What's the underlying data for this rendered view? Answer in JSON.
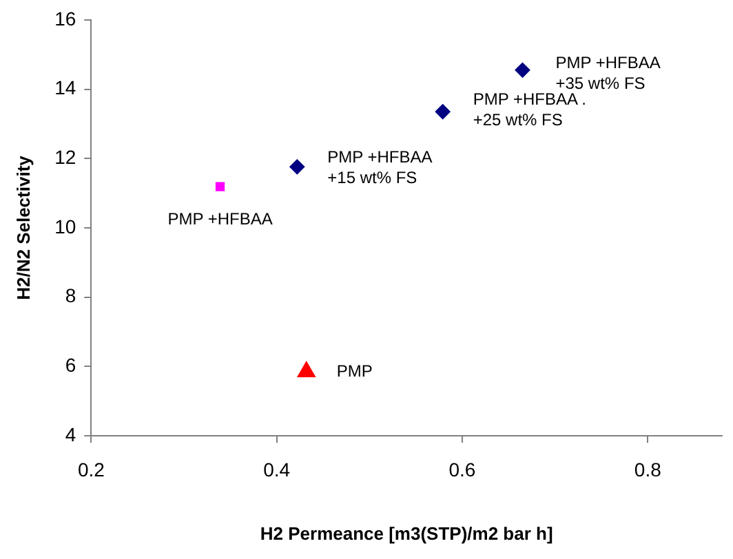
{
  "chart_data": {
    "type": "scatter",
    "xlabel": "H2 Permeance [m3(STP)/m2 bar h]",
    "ylabel": "H2/N2 Selectivity",
    "series": [
      {
        "marker": "triangle",
        "color": "#ff0000",
        "x": [
          0.432
        ],
        "values": [
          5.85
        ]
      },
      {
        "marker": "square",
        "color": "#ff00ff",
        "x": [
          0.339
        ],
        "values": [
          11.19
        ]
      },
      {
        "marker": "diamond",
        "color": "#000080",
        "x": [
          0.422,
          0.579,
          0.665
        ],
        "values": [
          11.76,
          13.35,
          14.55
        ]
      }
    ],
    "xlim": [
      0.2,
      0.88
    ],
    "xticks": [
      0.2,
      0.4,
      0.6,
      0.8
    ],
    "ylim": [
      4,
      16
    ],
    "yticks": [
      4,
      6,
      8,
      10,
      12,
      14,
      16
    ],
    "grid": false,
    "legend": false,
    "annotations": [
      {
        "text": "PMP",
        "x": 0.432,
        "y": 5.85
      },
      {
        "text": "PMP +HFBAA",
        "x": 0.339,
        "y": 11.19
      },
      {
        "text": "PMP +HFBAA\n+15 wt% FS",
        "x": 0.422,
        "y": 11.76
      },
      {
        "text": "PMP +HFBAA .\n+25 wt% FS",
        "x": 0.579,
        "y": 13.35
      },
      {
        "text": "PMP +HFBAA\n+35 wt% FS",
        "x": 0.665,
        "y": 14.55
      }
    ]
  }
}
